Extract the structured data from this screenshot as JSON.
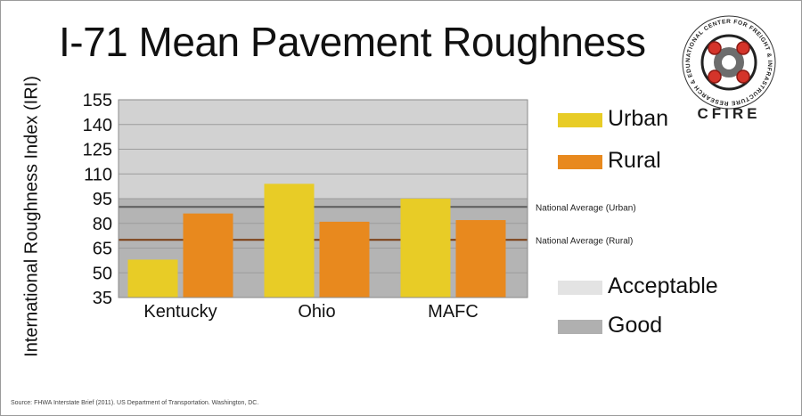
{
  "chart_data": {
    "type": "bar",
    "title": "I-71 Mean Pavement Roughness",
    "ylabel": "International Roughness Index (IRI)",
    "categories": [
      "Kentucky",
      "Ohio",
      "MAFC"
    ],
    "series": [
      {
        "name": "Urban",
        "values": [
          58,
          104,
          95
        ],
        "color": "#e8cc26"
      },
      {
        "name": "Rural",
        "values": [
          86,
          81,
          82
        ],
        "color": "#e8891e"
      }
    ],
    "ylim": [
      35,
      155
    ],
    "yticks": [
      155,
      140,
      125,
      110,
      95,
      80,
      65,
      50,
      35
    ],
    "reference_lines": [
      {
        "label": "National Average (Urban)",
        "value": 90,
        "color": "#5b5b5b"
      },
      {
        "label": "National Average (Rural)",
        "value": 70,
        "color": "#7a3b10"
      }
    ],
    "bands": [
      {
        "name": "Acceptable",
        "from": 95,
        "to": 155,
        "color": "#d2d2d2"
      },
      {
        "name": "Good",
        "from": 35,
        "to": 95,
        "color": "#b4b4b4"
      }
    ],
    "grid": true,
    "legend_position": "right",
    "legend": [
      {
        "label": "Urban",
        "color": "#e8cc26"
      },
      {
        "label": "Rural",
        "color": "#e8891e"
      },
      {
        "label": "Acceptable",
        "color": "#e3e3e3"
      },
      {
        "label": "Good",
        "color": "#b0b0b0"
      }
    ]
  },
  "source": "Source: FHWA Interstate Brief (2011). US Department of Transportation. Washington, DC.",
  "logo": {
    "ring_text": "NATIONAL CENTER FOR FREIGHT & INFRASTRUCTURE RESEARCH & EDUCATION",
    "name": "CFIRE"
  }
}
